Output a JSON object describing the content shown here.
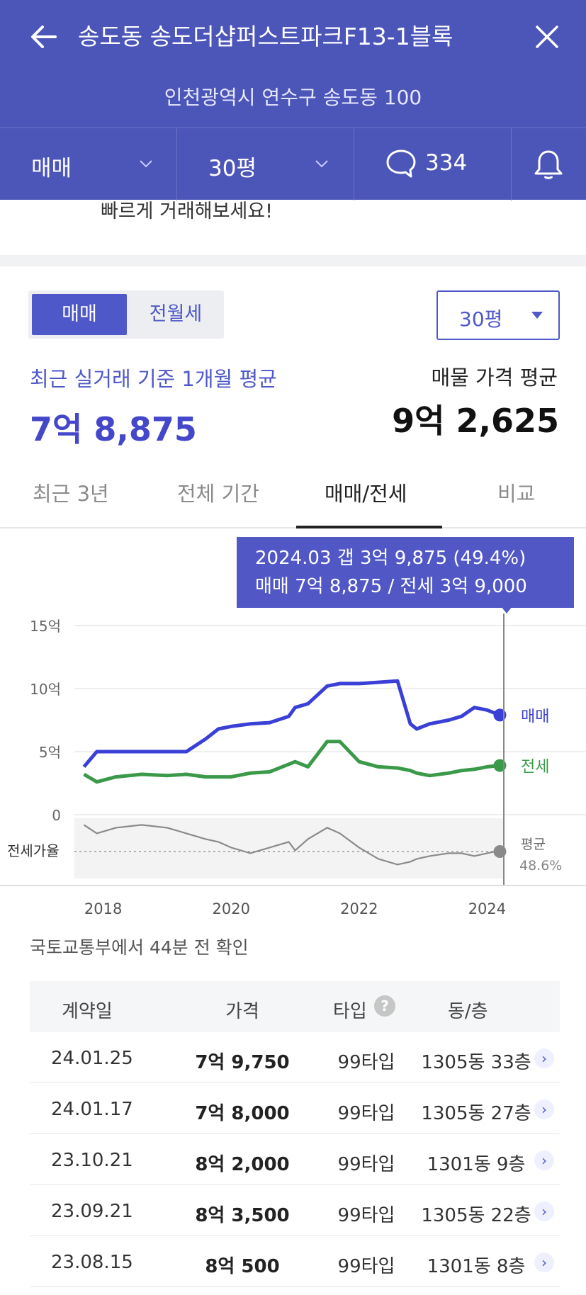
{
  "header": {
    "title": "송도동 송도더샵퍼스트파크F13-1블록",
    "address": "인천광역시 연수구 송도동 100",
    "filters": {
      "trade_type": "매매",
      "size": "30평",
      "comments_count": "334"
    }
  },
  "banner": {
    "text": "빠르게 거래해보세요!"
  },
  "summary": {
    "segment": {
      "active": "매매",
      "inactive": "전월세"
    },
    "size_select": "30평",
    "recent_label": "최근 실거래 기준 1개월 평균",
    "recent_value": "7억 8,875",
    "listing_label": "매물 가격 평균",
    "listing_value": "9억 2,625"
  },
  "tabs": [
    "최근 3년",
    "전체 기간",
    "매매/전세",
    "비교"
  ],
  "tooltip": {
    "line1": "2024.03  갭 3억 9,875 (49.4%)",
    "line2": "매매 7억 8,875 / 전세 3억 9,000"
  },
  "chart_data": {
    "type": "line",
    "x": [
      2017.7,
      2017.9,
      2018.2,
      2018.6,
      2019.0,
      2019.3,
      2019.6,
      2019.8,
      2020.0,
      2020.3,
      2020.6,
      2020.9,
      2021.0,
      2021.2,
      2021.5,
      2021.7,
      2022.0,
      2022.3,
      2022.6,
      2022.8,
      2022.9,
      2023.1,
      2023.4,
      2023.6,
      2023.8,
      2024.0,
      2024.2
    ],
    "series": [
      {
        "name": "매매",
        "color": "#3a3fd6",
        "values": [
          3.8,
          5.0,
          5.0,
          5.0,
          5.0,
          5.0,
          6.0,
          6.8,
          7.0,
          7.2,
          7.3,
          7.8,
          8.5,
          8.8,
          10.2,
          10.4,
          10.4,
          10.5,
          10.6,
          7.2,
          6.8,
          7.2,
          7.5,
          7.8,
          8.5,
          8.3,
          7.9
        ]
      },
      {
        "name": "전세",
        "color": "#3a9a4a",
        "values": [
          3.2,
          2.6,
          3.0,
          3.2,
          3.1,
          3.2,
          3.0,
          3.0,
          3.0,
          3.3,
          3.4,
          4.0,
          4.2,
          3.8,
          5.8,
          5.8,
          4.2,
          3.8,
          3.7,
          3.5,
          3.3,
          3.1,
          3.3,
          3.5,
          3.6,
          3.8,
          3.9
        ]
      }
    ],
    "ratio_series": {
      "name": "전세가율",
      "avg_label": "평균",
      "avg_value": "48.6%",
      "values": [
        58,
        55,
        57,
        58,
        57,
        55,
        53,
        52,
        50,
        48,
        50,
        52,
        49,
        53,
        57,
        55,
        50,
        46,
        44,
        45,
        46,
        47,
        48,
        48,
        47,
        48,
        49
      ]
    },
    "y_ticks": [
      "15억",
      "10억",
      "5억",
      "0"
    ],
    "x_ticks": [
      "2018",
      "2020",
      "2022",
      "2024"
    ],
    "ylim": [
      0,
      15
    ],
    "ratio_label": "전세가율"
  },
  "verified_note": "국토교통부에서 44분 전 확인",
  "table": {
    "headers": [
      "계약일",
      "가격",
      "타입",
      "동/층"
    ],
    "rows": [
      {
        "date": "24.01.25",
        "price": "7억 9,750",
        "type": "99타입",
        "unit": "1305동 33층"
      },
      {
        "date": "24.01.17",
        "price": "7억 8,000",
        "type": "99타입",
        "unit": "1305동 27층"
      },
      {
        "date": "23.10.21",
        "price": "8억 2,000",
        "type": "99타입",
        "unit": "1301동 9층"
      },
      {
        "date": "23.09.21",
        "price": "8억 3,500",
        "type": "99타입",
        "unit": "1305동 22층"
      },
      {
        "date": "23.08.15",
        "price": "8억 500",
        "type": "99타입",
        "unit": "1301동 8층"
      }
    ]
  },
  "colors": {
    "brand": "#4c55b8",
    "accent": "#4f58c8",
    "sale": "#3a3fd6",
    "jeonse": "#3a9a4a"
  }
}
